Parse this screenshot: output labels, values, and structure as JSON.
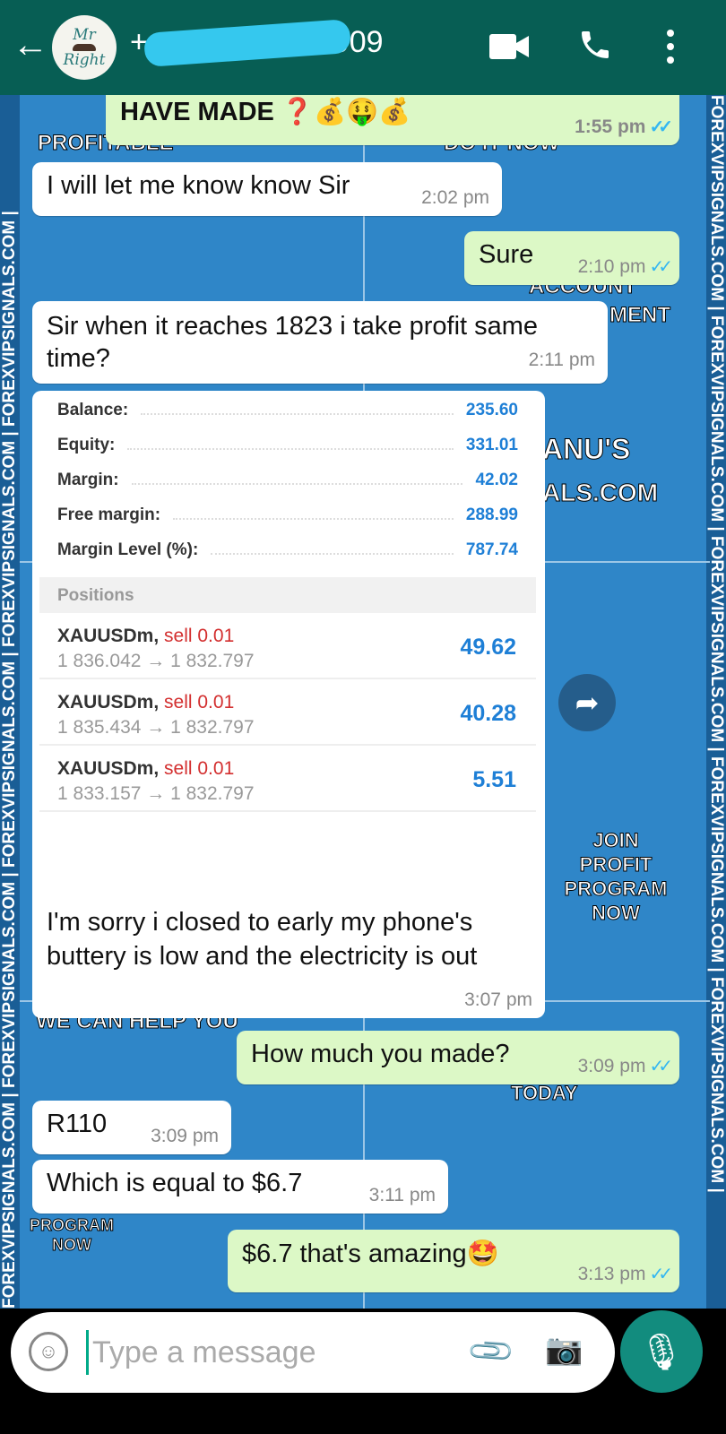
{
  "header": {
    "back_icon": "arrow-left-icon",
    "avatar_text_top": "Mr",
    "avatar_text_bottom": "Right",
    "phone_prefix": "+",
    "phone_suffix": "909",
    "icons": [
      "video-call-icon",
      "phone-call-icon",
      "more-vert-icon"
    ]
  },
  "colors": {
    "header": "#075e54",
    "outgoing": "#dcf8c6",
    "incoming": "#ffffff",
    "read_ticks": "#34b7f1",
    "wallpaper": "#2f86c8",
    "mic": "#128c7e"
  },
  "wallpaper": {
    "strip": "FOREXVIPSIGNALS.COM | FOREXVIPSIGNALS.COM | FOREXVIPSIGNALS.COM | FOREXVIPSIGNALS.COM | FOREXVIPSIGNALS.COM |",
    "fragments": [
      "PROFITABLE",
      "DO IT NOW",
      "ACCOUNT",
      "MENT",
      "ANU'S",
      "ALS.COM",
      "JOIN PROFIT PROGRAM NOW",
      "WE CAN HELP YOU",
      "TODAY",
      "PROGRAM NOW"
    ]
  },
  "messages": [
    {
      "dir": "out",
      "text": "HAVE MADE ❓💰🤑💰",
      "time": "1:55 pm"
    },
    {
      "dir": "in",
      "text": "I will let me know know Sir",
      "time": "2:02 pm"
    },
    {
      "dir": "out",
      "text": "Sure",
      "time": "2:10 pm"
    },
    {
      "dir": "in",
      "text": "Sir when it reaches 1823 i take profit same time?",
      "time": "2:11 pm"
    },
    {
      "dir": "in",
      "text": "I'm  sorry i closed to early my phone's buttery is low and the electricity is out",
      "time": "3:07 pm"
    },
    {
      "dir": "out",
      "text": "How much you made?",
      "time": "3:09 pm"
    },
    {
      "dir": "in",
      "text": "R110",
      "time": "3:09 pm"
    },
    {
      "dir": "in",
      "text": "Which is equal to $6.7",
      "time": "3:11 pm"
    },
    {
      "dir": "out",
      "text": "$6.7 that's amazing🤩",
      "time": "3:13 pm"
    }
  ],
  "trade": {
    "summary": [
      {
        "label": "Balance:",
        "value": "235.60"
      },
      {
        "label": "Equity:",
        "value": "331.01"
      },
      {
        "label": "Margin:",
        "value": "42.02"
      },
      {
        "label": "Free margin:",
        "value": "288.99"
      },
      {
        "label": "Margin Level (%):",
        "value": "787.74"
      }
    ],
    "positions_label": "Positions",
    "positions": [
      {
        "symbol": "XAUUSDm,",
        "side": "sell 0.01",
        "prices": "1 836.042 → 1 832.797",
        "profit": "49.62"
      },
      {
        "symbol": "XAUUSDm,",
        "side": "sell 0.01",
        "prices": "1 835.434 → 1 832.797",
        "profit": "40.28"
      },
      {
        "symbol": "XAUUSDm,",
        "side": "sell 0.01",
        "prices": "1 833.157 → 1 832.797",
        "profit": "5.51"
      }
    ]
  },
  "composer": {
    "placeholder": "Type a message",
    "icons": [
      "emoji-icon",
      "attach-icon",
      "camera-icon",
      "mic-icon"
    ]
  }
}
